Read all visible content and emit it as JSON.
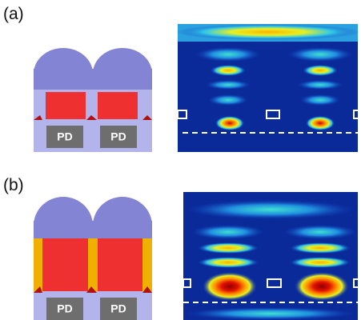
{
  "panels": [
    {
      "label": "(a)",
      "detectors": [
        "PD",
        "PD"
      ]
    },
    {
      "label": "(b)",
      "detectors": [
        "PD",
        "PD"
      ]
    }
  ]
}
